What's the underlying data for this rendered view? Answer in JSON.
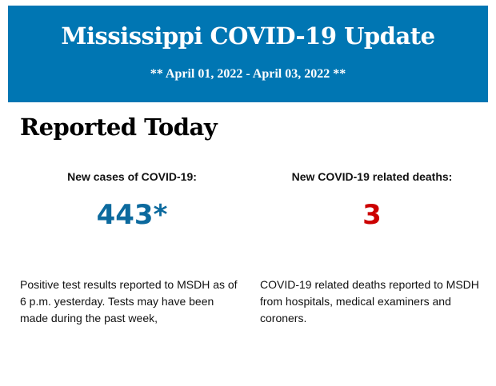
{
  "header": {
    "title": "Mississippi COVID-19 Update",
    "dates": "** April 01, 2022 - April 03, 2022 **"
  },
  "section_title": "Reported Today",
  "cases": {
    "label": "New cases of COVID-19:",
    "value": "443*",
    "color": "#0c6a9e",
    "description": "Positive test results reported to MSDH as of 6 p.m. yesterday. Tests may have been made during the past week,"
  },
  "deaths": {
    "label": "New COVID-19 related deaths:",
    "value": "3",
    "color": "#cc0000",
    "description": "COVID-19 related deaths reported to MSDH from hospitals, medical examiners and coroners."
  },
  "colors": {
    "banner": "#0076b3"
  }
}
